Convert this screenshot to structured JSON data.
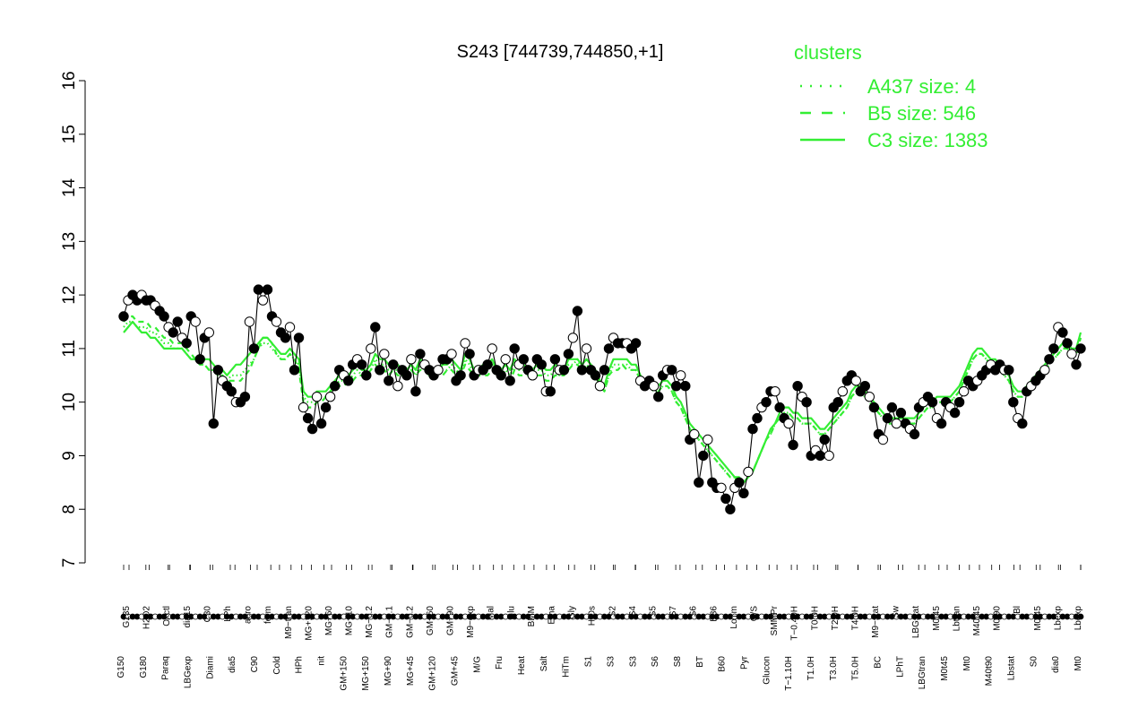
{
  "chart_data": {
    "type": "line",
    "title": "S243 [744739,744850,+1]",
    "xlabel": "",
    "ylabel": "",
    "ylim": [
      7,
      16
    ],
    "yticks": [
      7,
      8,
      9,
      10,
      11,
      12,
      13,
      14,
      15,
      16
    ],
    "grid": false,
    "legend": {
      "title": "clusters",
      "placement": "top-right",
      "entries": [
        {
          "label": "A437 size: 4",
          "style": "dotted"
        },
        {
          "label": "B5 size: 546",
          "style": "dashed"
        },
        {
          "label": "C3 size: 1383",
          "style": "solid"
        }
      ]
    },
    "x_tick_labels_upper": [
      "G135",
      "H2O2",
      "Oxctl",
      "dia15",
      "C30",
      "LPh",
      "aero",
      "ferm",
      "M9−tran",
      "MG+120",
      "MG+60",
      "MG+10",
      "MG−0.2",
      "GM−0.1",
      "GM−0.2",
      "GM+60",
      "GM+90",
      "M9−exp",
      "Mal",
      "Glu",
      "BMM",
      "Etha",
      "Gly",
      "HiOs",
      "S2",
      "S4",
      "S5",
      "S7",
      "S6",
      "B36",
      "LoTm",
      "G/S",
      "SMMPr",
      "T−0.40H",
      "T0.0H",
      "T2.0H",
      "T4.0H",
      "M9−stat",
      "Sw",
      "LBGstat",
      "M0t45",
      "Lbtran",
      "M40t45",
      "M0t90",
      "Bl",
      "M0t45",
      "Lbexp",
      "Lbexp"
    ],
    "x_tick_labels_lower": [
      "G150",
      "G180",
      "Paraq",
      "LBGexp",
      "Diami",
      "dia5",
      "C90",
      "Cold",
      "HPh",
      "nit",
      "GM+150",
      "MG+150",
      "MG+90",
      "MG+45",
      "GM+120",
      "GM+45",
      "M/G",
      "Fru",
      "Heat",
      "Salt",
      "HiTm",
      "S1",
      "S3",
      "S3",
      "S6",
      "S8",
      "BT",
      "B60",
      "Pyr",
      "Glucon",
      "T−1.10H",
      "T1.0H",
      "T3.0H",
      "T5.0H",
      "BC",
      "LPhT",
      "LBGtran",
      "M0t45",
      "Mt0",
      "M40t90",
      "Lbstat",
      "S0",
      "dia0",
      "Mt0"
    ],
    "series": [
      {
        "name": "",
        "role": "observed",
        "values": [
          11.6,
          11.9,
          12.0,
          11.9,
          12.0,
          11.9,
          11.9,
          11.8,
          11.7,
          11.6,
          11.4,
          11.3,
          11.5,
          11.2,
          11.1,
          11.6,
          11.5,
          10.8,
          11.2,
          11.3,
          9.6,
          10.6,
          10.4,
          10.3,
          10.2,
          10.0,
          10.0,
          10.1,
          11.5,
          11.0,
          12.1,
          11.9,
          12.1,
          11.6,
          11.5,
          11.3,
          11.2,
          11.4,
          10.6,
          11.2,
          9.9,
          9.7,
          9.5,
          10.1,
          9.6,
          9.9,
          10.1,
          10.3,
          10.6,
          10.5,
          10.4,
          10.7,
          10.8,
          10.7,
          10.5,
          11.0,
          11.4,
          10.6,
          10.9,
          10.4,
          10.7,
          10.3,
          10.6,
          10.5,
          10.8,
          10.2,
          10.9,
          10.7,
          10.6,
          10.5,
          10.6,
          10.8,
          10.8,
          10.9,
          10.4,
          10.5,
          11.1,
          10.9,
          10.5,
          10.6,
          10.6,
          10.7,
          11.0,
          10.6,
          10.5,
          10.8,
          10.4,
          11.0,
          10.7,
          10.8,
          10.6,
          10.5,
          10.8,
          10.7,
          10.2,
          10.2,
          10.8,
          10.6,
          10.6,
          10.9,
          11.2,
          11.7,
          10.6,
          11.0,
          10.6,
          10.5,
          10.3,
          10.6,
          11.0,
          11.2,
          11.1,
          11.1,
          11.1,
          11.0,
          11.1,
          10.4,
          10.3,
          10.4,
          10.3,
          10.1,
          10.5,
          10.6,
          10.6,
          10.3,
          10.5,
          10.3,
          9.3,
          9.4,
          8.5,
          9.0,
          9.3,
          8.5,
          8.4,
          8.4,
          8.2,
          8.0,
          8.4,
          8.5,
          8.3,
          8.7,
          9.5,
          9.7,
          9.9,
          10.0,
          10.2,
          10.2,
          9.9,
          9.7,
          9.6,
          9.2,
          10.3,
          10.1,
          10.0,
          9.0,
          9.1,
          9.0,
          9.3,
          9.0,
          9.9,
          10.0,
          10.2,
          10.4,
          10.5,
          10.4,
          10.2,
          10.3,
          10.1,
          9.9,
          9.4,
          9.3,
          9.7,
          9.9,
          9.6,
          9.8,
          9.6,
          9.5,
          9.4,
          9.9,
          10.0,
          10.1,
          10.0,
          9.7,
          9.6,
          10.0,
          9.9,
          9.8,
          10.0,
          10.2,
          10.4,
          10.3,
          10.4,
          10.5,
          10.6,
          10.7,
          10.6,
          10.7,
          10.6,
          10.6,
          10.0,
          9.7,
          9.6,
          10.2,
          10.3,
          10.4,
          10.5,
          10.6,
          10.8,
          11.0,
          11.4,
          11.3,
          11.1,
          10.9,
          10.7,
          11.0
        ]
      },
      {
        "name": "",
        "role": "cluster-C3",
        "values": [
          11.3,
          11.4,
          11.5,
          11.4,
          11.3,
          11.3,
          11.2,
          11.2,
          11.1,
          11.0,
          11.0,
          11.0,
          11.0,
          11.0,
          10.9,
          10.8,
          10.8,
          10.7,
          10.8,
          10.8,
          10.7,
          10.6,
          10.6,
          10.5,
          10.6,
          10.7,
          10.7,
          10.8,
          10.9,
          11.0,
          11.1,
          11.2,
          11.2,
          11.1,
          11.0,
          10.9,
          10.9,
          11.0,
          10.9,
          10.8,
          10.2,
          10.1,
          10.1,
          10.2,
          10.2,
          10.2,
          10.3,
          10.4,
          10.5,
          10.5,
          10.5,
          10.6,
          10.7,
          10.6,
          10.6,
          10.7,
          10.9,
          10.8,
          10.8,
          10.7,
          10.7,
          10.7,
          10.6,
          10.6,
          10.7,
          10.6,
          10.8,
          10.7,
          10.6,
          10.6,
          10.6,
          10.7,
          10.7,
          10.8,
          10.7,
          10.6,
          10.9,
          10.8,
          10.6,
          10.6,
          10.7,
          10.7,
          10.8,
          10.6,
          10.6,
          10.7,
          10.6,
          10.8,
          10.7,
          10.7,
          10.6,
          10.6,
          10.7,
          10.7,
          10.6,
          10.6,
          10.7,
          10.6,
          10.6,
          10.8,
          10.8,
          10.8,
          10.7,
          10.8,
          10.7,
          10.6,
          10.4,
          10.3,
          10.6,
          10.8,
          10.8,
          10.8,
          10.8,
          10.7,
          10.7,
          10.5,
          10.4,
          10.4,
          10.3,
          10.3,
          10.4,
          10.4,
          10.3,
          10.1,
          10.0,
          9.8,
          9.6,
          9.5,
          9.4,
          9.3,
          9.2,
          9.1,
          9.0,
          8.9,
          8.8,
          8.7,
          8.6,
          8.6,
          8.5,
          8.6,
          8.7,
          8.9,
          9.1,
          9.3,
          9.5,
          9.6,
          9.8,
          9.9,
          9.9,
          9.8,
          9.8,
          9.7,
          9.7,
          9.7,
          9.6,
          9.5,
          9.5,
          9.6,
          9.7,
          9.8,
          9.9,
          10.0,
          10.2,
          10.3,
          10.3,
          10.2,
          10.1,
          10.0,
          9.9,
          9.8,
          9.7,
          9.7,
          9.7,
          9.7,
          9.7,
          9.7,
          9.7,
          9.8,
          9.9,
          10.0,
          10.0,
          10.1,
          10.1,
          10.1,
          10.1,
          10.2,
          10.3,
          10.5,
          10.7,
          10.9,
          11.0,
          11.0,
          10.9,
          10.8,
          10.8,
          10.7,
          10.6,
          10.5,
          10.3,
          10.2,
          10.2,
          10.3,
          10.4,
          10.5,
          10.6,
          10.7,
          10.8,
          10.9,
          11.0,
          11.1,
          11.1,
          11.0,
          11.0,
          11.3
        ]
      },
      {
        "name": "",
        "role": "cluster-B5",
        "values": [
          11.5,
          11.6,
          11.6,
          11.5,
          11.5,
          11.5,
          11.4,
          11.4,
          11.3,
          11.2,
          11.2,
          11.1,
          11.1,
          11.1,
          11.0,
          10.9,
          10.8,
          10.7,
          10.7,
          10.6,
          10.6,
          10.5,
          10.5,
          10.4,
          10.4,
          10.4,
          10.4,
          10.5,
          10.6,
          10.8,
          11.0,
          11.2,
          11.2,
          11.1,
          10.9,
          10.8,
          10.8,
          10.9,
          10.8,
          10.6,
          10.0,
          9.9,
          9.9,
          10.0,
          10.0,
          10.1,
          10.2,
          10.3,
          10.3,
          10.3,
          10.4,
          10.4,
          10.5,
          10.5,
          10.5,
          10.6,
          10.7,
          10.6,
          10.6,
          10.5,
          10.6,
          10.5,
          10.5,
          10.5,
          10.6,
          10.5,
          10.6,
          10.6,
          10.5,
          10.5,
          10.5,
          10.5,
          10.6,
          10.6,
          10.5,
          10.5,
          10.7,
          10.6,
          10.5,
          10.5,
          10.5,
          10.5,
          10.6,
          10.5,
          10.5,
          10.5,
          10.4,
          10.6,
          10.5,
          10.5,
          10.5,
          10.5,
          10.5,
          10.5,
          10.4,
          10.4,
          10.5,
          10.5,
          10.5,
          10.6,
          10.7,
          10.7,
          10.6,
          10.6,
          10.5,
          10.5,
          10.3,
          10.2,
          10.5,
          10.6,
          10.6,
          10.7,
          10.6,
          10.6,
          10.6,
          10.4,
          10.3,
          10.3,
          10.2,
          10.2,
          10.3,
          10.3,
          10.2,
          10.0,
          9.9,
          9.7,
          9.5,
          9.4,
          9.3,
          9.2,
          9.1,
          9.0,
          8.9,
          8.8,
          8.7,
          8.6,
          8.6,
          8.5,
          8.5,
          8.6,
          8.7,
          8.9,
          9.1,
          9.3,
          9.4,
          9.6,
          9.7,
          9.8,
          9.8,
          9.7,
          9.7,
          9.6,
          9.6,
          9.6,
          9.5,
          9.4,
          9.4,
          9.5,
          9.6,
          9.7,
          9.8,
          9.9,
          10.1,
          10.2,
          10.2,
          10.1,
          10.0,
          9.9,
          9.8,
          9.7,
          9.6,
          9.6,
          9.6,
          9.6,
          9.6,
          9.6,
          9.6,
          9.7,
          9.8,
          9.9,
          9.9,
          10.0,
          10.0,
          10.0,
          10.0,
          10.1,
          10.2,
          10.4,
          10.6,
          10.8,
          10.9,
          10.9,
          10.8,
          10.7,
          10.7,
          10.6,
          10.5,
          10.4,
          10.2,
          10.1,
          10.1,
          10.2,
          10.3,
          10.4,
          10.5,
          10.6,
          10.7,
          10.8,
          10.9,
          11.0,
          11.0,
          10.9,
          10.9,
          11.2
        ]
      },
      {
        "name": "",
        "role": "cluster-A437",
        "values": [
          11.4,
          11.5,
          11.5,
          11.4,
          11.4,
          11.4,
          11.3,
          11.3,
          11.2,
          11.1,
          11.1,
          11.0,
          11.0,
          11.0,
          10.9,
          10.8,
          10.8,
          10.7,
          10.7,
          10.6,
          10.6,
          10.5,
          10.5,
          10.4,
          10.5,
          10.5,
          10.5,
          10.6,
          10.7,
          10.8,
          11.0,
          11.1,
          11.1,
          11.0,
          10.9,
          10.8,
          10.8,
          10.9,
          10.8,
          10.7,
          10.1,
          10.0,
          10.0,
          10.1,
          10.1,
          10.1,
          10.2,
          10.3,
          10.4,
          10.4,
          10.4,
          10.5,
          10.6,
          10.5,
          10.5,
          10.6,
          10.8,
          10.7,
          10.7,
          10.6,
          10.6,
          10.6,
          10.5,
          10.5,
          10.6,
          10.5,
          10.7,
          10.6,
          10.5,
          10.5,
          10.5,
          10.6,
          10.6,
          10.7,
          10.6,
          10.5,
          10.8,
          10.7,
          10.5,
          10.5,
          10.6,
          10.6,
          10.7,
          10.5,
          10.5,
          10.6,
          10.5,
          10.7,
          10.6,
          10.6,
          10.5,
          10.5,
          10.6,
          10.6,
          10.5,
          10.5,
          10.6,
          10.5,
          10.5,
          10.7,
          10.7,
          10.8,
          10.6,
          10.7,
          10.6,
          10.5,
          10.3,
          10.2,
          10.5,
          10.7,
          10.7,
          10.7,
          10.7,
          10.6,
          10.6,
          10.4,
          10.3,
          10.3,
          10.2,
          10.2,
          10.3,
          10.3,
          10.2,
          10.0,
          9.9,
          9.7,
          9.5,
          9.4,
          9.3,
          9.2,
          9.1,
          9.0,
          8.9,
          8.8,
          8.7,
          8.6,
          8.6,
          8.5,
          8.5,
          8.6,
          8.7,
          8.9,
          9.1,
          9.3,
          9.4,
          9.6,
          9.7,
          9.8,
          9.8,
          9.7,
          9.7,
          9.6,
          9.6,
          9.6,
          9.5,
          9.4,
          9.4,
          9.5,
          9.6,
          9.7,
          9.8,
          9.9,
          10.1,
          10.2,
          10.2,
          10.1,
          10.0,
          9.9,
          9.8,
          9.7,
          9.6,
          9.6,
          9.6,
          9.6,
          9.6,
          9.6,
          9.6,
          9.7,
          9.8,
          9.9,
          9.9,
          10.0,
          10.0,
          10.0,
          10.0,
          10.1,
          10.2,
          10.4,
          10.6,
          10.8,
          10.9,
          10.9,
          10.8,
          10.7,
          10.7,
          10.6,
          10.5,
          10.4,
          10.2,
          10.1,
          10.1,
          10.2,
          10.3,
          10.4,
          10.5,
          10.6,
          10.7,
          10.8,
          10.9,
          11.0,
          11.0,
          10.9,
          10.9,
          11.2
        ]
      }
    ]
  },
  "colors": {
    "observed_line": "#000000",
    "cluster_line": "#33ee33",
    "filled_point": "#000000",
    "open_point": "#ffffff",
    "legend_text": "#33ee33"
  }
}
